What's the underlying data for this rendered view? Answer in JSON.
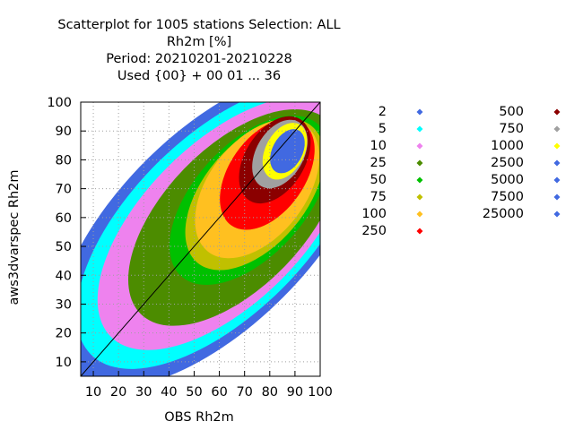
{
  "chart_data": {
    "type": "scatter",
    "title_lines": [
      "Scatterplot for 1005 stations Selection: ALL",
      "Rh2m [%]",
      "Period: 20210201-20210228",
      "Used {00} + 00 01 ... 36"
    ],
    "xlabel": "OBS Rh2m",
    "ylabel": "aws3dvarspec Rh2m",
    "xlim": [
      5,
      100
    ],
    "ylim": [
      5,
      100
    ],
    "x_ticks": [
      10,
      20,
      30,
      40,
      50,
      60,
      70,
      80,
      90,
      100
    ],
    "y_ticks": [
      10,
      20,
      30,
      40,
      50,
      60,
      70,
      80,
      90,
      100
    ],
    "grid": true,
    "diagonal_line": true,
    "legend_position": "right",
    "series": [
      {
        "name": "2",
        "color": "#4169e1"
      },
      {
        "name": "5",
        "color": "#00ffff"
      },
      {
        "name": "10",
        "color": "#ee82ee"
      },
      {
        "name": "25",
        "color": "#4c8c00"
      },
      {
        "name": "50",
        "color": "#00c000"
      },
      {
        "name": "75",
        "color": "#c0c000"
      },
      {
        "name": "100",
        "color": "#ffc020"
      },
      {
        "name": "250",
        "color": "#ff0000"
      },
      {
        "name": "500",
        "color": "#8b0000"
      },
      {
        "name": "750",
        "color": "#a0a0a0"
      },
      {
        "name": "1000",
        "color": "#ffff00"
      },
      {
        "name": "2500",
        "color": "#4169e1"
      },
      {
        "name": "5000",
        "color": "#4169e1"
      },
      {
        "name": "7500",
        "color": "#4169e1"
      },
      {
        "name": "25000",
        "color": "#4169e1"
      }
    ],
    "density_bands": [
      {
        "series": "2",
        "center": [
          58,
          56
        ],
        "radius": 52,
        "ratio": 2.4,
        "angle": 45
      },
      {
        "series": "5",
        "center": [
          60,
          57
        ],
        "radius": 47,
        "ratio": 2.35,
        "angle": 45
      },
      {
        "series": "10",
        "center": [
          62,
          58
        ],
        "radius": 42,
        "ratio": 2.3,
        "angle": 45
      },
      {
        "series": "25",
        "center": [
          66,
          60
        ],
        "radius": 36,
        "ratio": 2.2,
        "angle": 46
      },
      {
        "series": "50",
        "center": [
          72,
          66
        ],
        "radius": 28,
        "ratio": 2.1,
        "angle": 48
      },
      {
        "series": "75",
        "center": [
          74,
          68
        ],
        "radius": 25,
        "ratio": 2.0,
        "angle": 50
      },
      {
        "series": "100",
        "center": [
          75,
          70
        ],
        "radius": 23,
        "ratio": 1.9,
        "angle": 52
      },
      {
        "series": "250",
        "center": [
          79,
          75
        ],
        "radius": 18,
        "ratio": 1.9,
        "angle": 55
      },
      {
        "series": "500",
        "center": [
          82,
          80
        ],
        "radius": 14,
        "ratio": 1.85,
        "angle": 58
      },
      {
        "series": "750",
        "center": [
          84,
          82
        ],
        "radius": 11,
        "ratio": 1.8,
        "angle": 60
      },
      {
        "series": "1000",
        "center": [
          86,
          83
        ],
        "radius": 9,
        "ratio": 1.8,
        "angle": 62
      },
      {
        "series": "2500",
        "center": [
          87,
          83
        ],
        "radius": 7,
        "ratio": 1.8,
        "angle": 62
      }
    ]
  }
}
